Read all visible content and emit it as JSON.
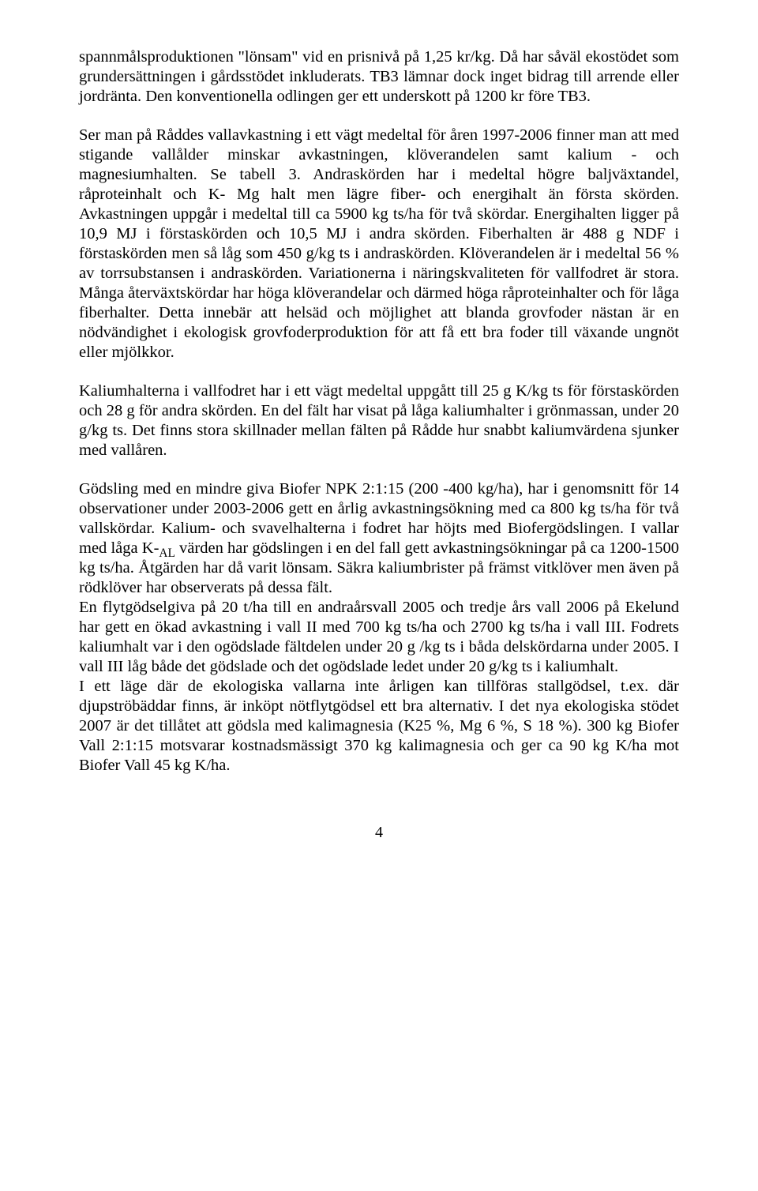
{
  "document": {
    "font_family": "Times New Roman",
    "font_size_pt": 15,
    "text_color": "#000000",
    "background_color": "#ffffff",
    "text_align": "justify",
    "page_number": "4",
    "paragraphs": [
      "spannmålsproduktionen \"lönsam\" vid en prisnivå på 1,25 kr/kg. Då har såväl ekostödet som grundersättningen i gårdsstödet inkluderats. TB3 lämnar dock inget bidrag till arrende eller jordränta. Den konventionella odlingen ger ett underskott på 1200 kr före TB3.",
      "Ser man på Råddes vallavkastning i ett vägt medeltal för åren 1997-2006 finner man att med stigande vallålder minskar avkastningen, klöverandelen samt kalium - och magnesiumhalten. Se tabell 3. Andraskörden har i medeltal högre baljväxtandel, råproteinhalt och K- Mg halt men lägre fiber- och energihalt än första skörden. Avkastningen uppgår i medeltal till ca 5900 kg ts/ha för två skördar. Energihalten ligger på 10,9 MJ i förstaskörden och 10,5 MJ i andra skörden. Fiberhalten är 488 g NDF i förstaskörden men så låg som 450 g/kg ts i andraskörden. Klöverandelen är i medeltal 56 % av torrsubstansen i andraskörden. Variationerna i näringskvaliteten för vallfodret är stora. Många återväxtskördar har höga klöverandelar och därmed höga råproteinhalter och för låga fiberhalter. Detta innebär att helsäd och möjlighet att blanda grovfoder nästan är en nödvändighet i ekologisk grovfoderproduktion för att få ett bra foder till växande ungnöt eller mjölkkor.",
      "Kaliumhalterna i vallfodret har i ett vägt medeltal uppgått till 25 g K/kg ts för förstaskörden och 28 g för andra skörden. En del fält har visat på låga kaliumhalter i grönmassan, under 20 g/kg ts. Det finns stora skillnader mellan fälten på Rådde hur snabbt kaliumvärdena sjunker med vallåren.",
      "Gödsling med en mindre giva Biofer NPK 2:1:15 (200 -400 kg/ha), har i genomsnitt för 14 observationer under 2003-2006 gett en årlig avkastningsökning med ca 800 kg ts/ha för två vallskördar. Kalium- och svavelhalterna i fodret har höjts med Biofergödslingen. I vallar med låga K-{{SUB_AL}} värden har gödslingen i en del fall gett avkastningsökningar på ca 1200-1500 kg ts/ha. Åtgärden har då varit lönsam. Säkra kaliumbrister på främst vitklöver men även på rödklöver har observerats på dessa fält.",
      "En flytgödselgiva på 20 t/ha till en andraårsvall 2005 och tredje års vall 2006 på Ekelund har gett en ökad avkastning i vall II med 700 kg ts/ha och 2700 kg ts/ha i vall III. Fodrets kaliumhalt var i den ogödslade fältdelen under 20 g /kg ts i båda delskördarna under 2005. I vall III låg både det gödslade och det ogödslade ledet under 20 g/kg ts i kaliumhalt.",
      "I ett läge där de ekologiska vallarna inte årligen kan tillföras stallgödsel, t.ex. där djupströbäddar finns, är inköpt nötflytgödsel ett bra alternativ. I det nya ekologiska stödet 2007 är det tillåtet att gödsla med kalimagnesia (K25 %, Mg 6 %, S 18 %). 300 kg Biofer Vall 2:1:15 motsvarar kostnadsmässigt 370 kg kalimagnesia och ger ca 90 kg K/ha mot Biofer Vall 45 kg K/ha."
    ],
    "paragraph_spacing": [
      true,
      true,
      true,
      false,
      false,
      false
    ]
  }
}
